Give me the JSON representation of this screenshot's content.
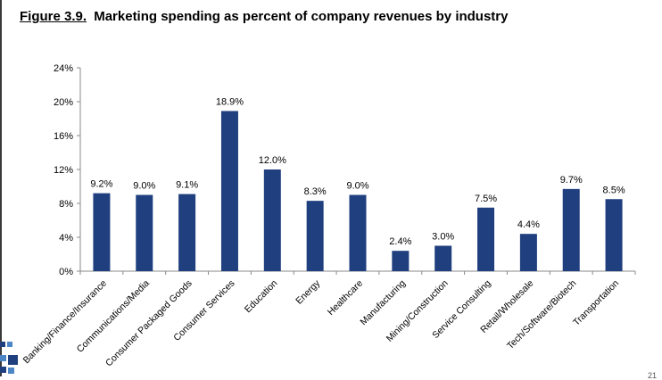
{
  "figure": {
    "number_label": "Figure 3.9.",
    "title_text": "Marketing spending as percent of company revenues by industry"
  },
  "page_number": "21",
  "colors": {
    "bar": "#1f3f7f",
    "axis": "#8a8a8a",
    "corner_dark": "#1f3f7f",
    "corner_light": "#4d86c4"
  },
  "chart_data": {
    "type": "bar",
    "title": "Marketing spending as percent of company revenues by industry",
    "categories": [
      "Banking/Finance/Insurance",
      "Communications/Media",
      "Consumer Packaged Goods",
      "Consumer Services",
      "Education",
      "Energy",
      "Healthcare",
      "Manufacturing",
      "Mining/Construction",
      "Service Consulting",
      "Retail/Wholesale",
      "Tech/Software/Biotech",
      "Transportation"
    ],
    "values": [
      9.2,
      9.0,
      9.1,
      18.9,
      12.0,
      8.3,
      9.0,
      2.4,
      3.0,
      7.5,
      4.4,
      9.7,
      8.5
    ],
    "value_labels": [
      "9.2%",
      "9.0%",
      "9.1%",
      "18.9%",
      "12.0%",
      "8.3%",
      "9.0%",
      "2.4%",
      "3.0%",
      "7.5%",
      "4.4%",
      "9.7%",
      "8.5%"
    ],
    "ylim": [
      0,
      24
    ],
    "yticks": [
      0,
      4,
      8,
      12,
      16,
      20,
      24
    ],
    "ytick_labels": [
      "0%",
      "4%",
      "8%",
      "12%",
      "16%",
      "20%",
      "24%"
    ],
    "xlabel": "",
    "ylabel": "",
    "grid": false,
    "legend": "none"
  }
}
